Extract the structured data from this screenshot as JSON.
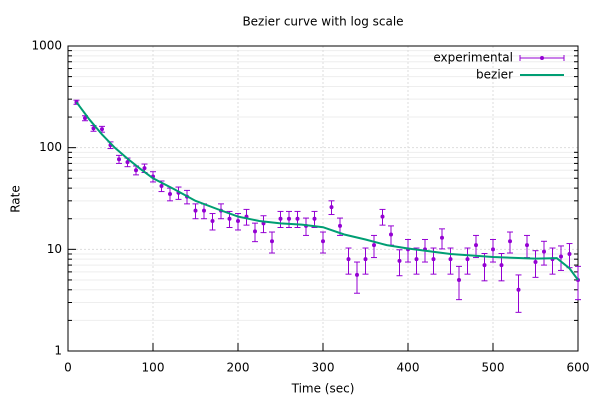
{
  "chart_data": {
    "type": "line",
    "title": "Bezier curve with log scale",
    "xlabel": "Time (sec)",
    "ylabel": "Rate",
    "xlim": [
      0,
      600
    ],
    "xticks": [
      0,
      100,
      200,
      300,
      400,
      500,
      600
    ],
    "ylim": [
      1,
      1000
    ],
    "yticks": [
      1,
      10,
      100,
      1000
    ],
    "log_y": true,
    "grid": true,
    "yminorticks": [
      2,
      3,
      4,
      5,
      6,
      7,
      8,
      9,
      20,
      30,
      40,
      50,
      60,
      70,
      80,
      90,
      200,
      300,
      400,
      500,
      600,
      700,
      800,
      900
    ],
    "legend": "top-right",
    "series": [
      {
        "name": "experimental",
        "color": "#9400d3",
        "style": "errorbars",
        "x": [
          10,
          20,
          30,
          40,
          50,
          60,
          70,
          80,
          90,
          100,
          110,
          120,
          130,
          140,
          150,
          160,
          170,
          180,
          190,
          200,
          210,
          220,
          230,
          240,
          250,
          260,
          270,
          280,
          290,
          300,
          310,
          320,
          330,
          340,
          350,
          360,
          370,
          380,
          390,
          400,
          410,
          420,
          430,
          440,
          450,
          460,
          470,
          480,
          490,
          500,
          510,
          520,
          530,
          540,
          550,
          560,
          570,
          580,
          590,
          600
        ],
        "values": [
          280,
          195,
          155,
          152,
          106,
          77,
          72,
          60,
          63,
          52,
          42,
          35,
          36,
          33,
          24,
          24,
          19,
          24,
          20,
          19,
          21,
          15,
          18,
          12,
          20,
          20,
          20,
          17,
          20,
          12,
          26,
          17,
          8,
          5.6,
          8,
          11,
          21,
          14,
          7.7,
          10,
          8,
          10,
          8,
          13,
          8,
          5,
          8,
          11,
          7,
          10,
          7,
          12,
          4,
          11,
          7.5,
          9.5,
          8,
          8.5,
          9,
          5
        ],
        "errors": [
          13,
          11,
          10,
          10,
          8,
          7,
          7,
          6,
          6,
          6,
          5,
          5,
          5,
          5,
          4,
          4,
          3.5,
          4,
          3.6,
          3.5,
          3.7,
          3.1,
          3.4,
          2.8,
          3.6,
          3.6,
          3.6,
          3.3,
          3.6,
          2.8,
          4,
          3.3,
          2.3,
          1.9,
          2.3,
          2.7,
          3.7,
          3,
          2.2,
          2.5,
          2.3,
          2.5,
          2.3,
          2.9,
          2.3,
          1.8,
          2.3,
          2.7,
          2.1,
          2.5,
          2.1,
          2.8,
          1.6,
          2.7,
          2.2,
          2.5,
          2.3,
          2.3,
          2.4,
          1.8
        ]
      },
      {
        "name": "bezier",
        "color": "#009e73",
        "style": "line",
        "x": [
          10,
          25,
          40,
          55,
          70,
          85,
          100,
          125,
          150,
          175,
          200,
          225,
          250,
          275,
          300,
          325,
          350,
          375,
          400,
          450,
          500,
          550,
          575,
          590,
          600
        ],
        "values": [
          280,
          190,
          135,
          100,
          78,
          62,
          50,
          39,
          30,
          25,
          21,
          19,
          18,
          17.5,
          16.5,
          14,
          12.5,
          11,
          10.2,
          9,
          8.4,
          8.1,
          8.2,
          6.5,
          5
        ]
      }
    ]
  }
}
